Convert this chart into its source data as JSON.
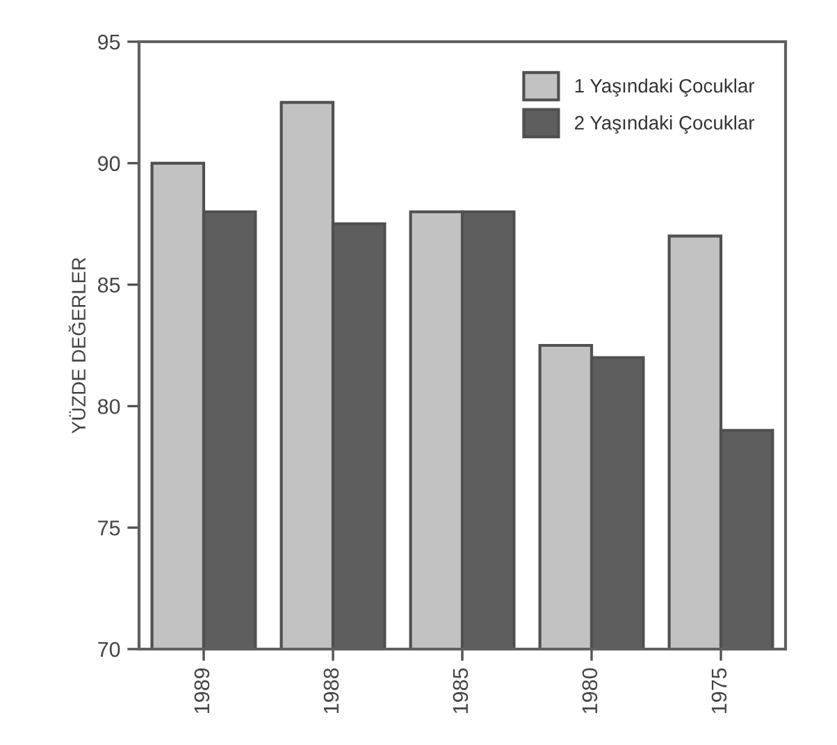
{
  "chart_data": {
    "type": "bar",
    "ylabel": "YÜZDE DEĞERLER",
    "categories": [
      "1989",
      "1988",
      "1985",
      "1980",
      "1975"
    ],
    "series": [
      {
        "name": "1 Yaşındaki Çocuklar",
        "color": "#c2c2c2",
        "values": [
          90,
          92.5,
          88,
          82.5,
          87
        ]
      },
      {
        "name": "2 Yaşındaki Çocuklar",
        "color": "#5e5e5e",
        "values": [
          88,
          87.5,
          88,
          82,
          79
        ]
      }
    ],
    "ylim": [
      70,
      95
    ],
    "yticks": [
      70,
      75,
      80,
      85,
      90,
      95
    ],
    "grid": false,
    "legend": "top right"
  }
}
